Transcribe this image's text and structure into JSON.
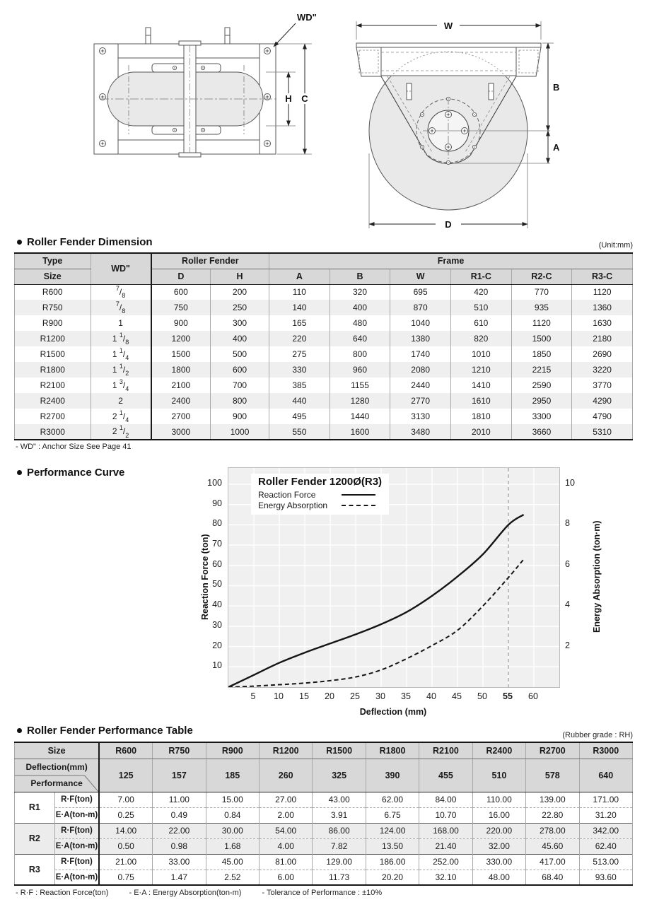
{
  "page": {
    "unit_note": "(Unit:mm)",
    "rubber_note": "(Rubber grade : RH)"
  },
  "drawings": {
    "side": {
      "wd": "WD\"",
      "h": "H",
      "c": "C"
    },
    "front": {
      "w": "W",
      "b": "B",
      "a": "A",
      "d": "D"
    }
  },
  "dimension_section": {
    "title": "Roller Fender Dimension",
    "footnote": "- WD\" : Anchor Size See Page 41",
    "table": {
      "header": {
        "type": "Type",
        "size": "Size",
        "wd": "WD\"",
        "roller_fender": "Roller Fender",
        "frame": "Frame",
        "cols": [
          "D",
          "H",
          "A",
          "B",
          "W",
          "R1-C",
          "R2-C",
          "R3-C"
        ]
      },
      "rows": [
        {
          "size": "R600",
          "wd": "7/8",
          "d": "600",
          "h": "200",
          "a": "110",
          "b": "320",
          "w": "695",
          "r1c": "420",
          "r2c": "770",
          "r3c": "1120"
        },
        {
          "size": "R750",
          "wd": "7/8",
          "d": "750",
          "h": "250",
          "a": "140",
          "b": "400",
          "w": "870",
          "r1c": "510",
          "r2c": "935",
          "r3c": "1360"
        },
        {
          "size": "R900",
          "wd": "1",
          "d": "900",
          "h": "300",
          "a": "165",
          "b": "480",
          "w": "1040",
          "r1c": "610",
          "r2c": "1120",
          "r3c": "1630"
        },
        {
          "size": "R1200",
          "wd": "1 1/8",
          "d": "1200",
          "h": "400",
          "a": "220",
          "b": "640",
          "w": "1380",
          "r1c": "820",
          "r2c": "1500",
          "r3c": "2180"
        },
        {
          "size": "R1500",
          "wd": "1 1/4",
          "d": "1500",
          "h": "500",
          "a": "275",
          "b": "800",
          "w": "1740",
          "r1c": "1010",
          "r2c": "1850",
          "r3c": "2690"
        },
        {
          "size": "R1800",
          "wd": "1 1/2",
          "d": "1800",
          "h": "600",
          "a": "330",
          "b": "960",
          "w": "2080",
          "r1c": "1210",
          "r2c": "2215",
          "r3c": "3220"
        },
        {
          "size": "R2100",
          "wd": "1 3/4",
          "d": "2100",
          "h": "700",
          "a": "385",
          "b": "1155",
          "w": "2440",
          "r1c": "1410",
          "r2c": "2590",
          "r3c": "3770"
        },
        {
          "size": "R2400",
          "wd": "2",
          "d": "2400",
          "h": "800",
          "a": "440",
          "b": "1280",
          "w": "2770",
          "r1c": "1610",
          "r2c": "2950",
          "r3c": "4290"
        },
        {
          "size": "R2700",
          "wd": "2 1/4",
          "d": "2700",
          "h": "900",
          "a": "495",
          "b": "1440",
          "w": "3130",
          "r1c": "1810",
          "r2c": "3300",
          "r3c": "4790"
        },
        {
          "size": "R3000",
          "wd": "2 1/2",
          "d": "3000",
          "h": "1000",
          "a": "550",
          "b": "1600",
          "w": "3480",
          "r1c": "2010",
          "r2c": "3660",
          "r3c": "5310"
        }
      ]
    }
  },
  "curve_section": {
    "title": "Performance Curve"
  },
  "chart_data": {
    "type": "line",
    "title": "Roller Fender 1200Ø(R3)",
    "x_axis": {
      "label": "Deflection (mm)",
      "ticks": [
        5,
        10,
        15,
        20,
        25,
        30,
        35,
        40,
        45,
        50,
        55,
        60
      ],
      "range": [
        0,
        65
      ],
      "bold_tick": 55,
      "marker_x": 55
    },
    "y_left": {
      "label": "Reaction Force (ton)",
      "ticks": [
        10,
        20,
        30,
        40,
        50,
        60,
        70,
        80,
        90,
        100
      ],
      "range": [
        0,
        108
      ]
    },
    "y_right": {
      "label": "Energy Absorption (ton·m)",
      "ticks": [
        2,
        4,
        6,
        8,
        10
      ],
      "range": [
        0,
        10.8
      ]
    },
    "grid": true,
    "legend_position": "top-left",
    "plot_bg": "#f0f0f0",
    "series": [
      {
        "name": "Reaction Force",
        "style": "solid",
        "axis": "left",
        "x": [
          0,
          5,
          10,
          15,
          20,
          25,
          30,
          35,
          40,
          45,
          50,
          55,
          58
        ],
        "y": [
          0,
          6,
          12,
          17,
          21.5,
          26,
          31,
          37,
          45,
          54.5,
          65.5,
          80,
          85
        ]
      },
      {
        "name": "Energy Absorption",
        "style": "dashed",
        "axis": "right",
        "x": [
          0,
          5,
          10,
          15,
          20,
          25,
          30,
          35,
          40,
          45,
          50,
          55,
          58
        ],
        "y": [
          0,
          0.05,
          0.12,
          0.2,
          0.32,
          0.5,
          0.85,
          1.4,
          2.05,
          2.8,
          4.0,
          5.4,
          6.3
        ]
      }
    ]
  },
  "performance_section": {
    "title": "Roller Fender Performance Table",
    "notes": [
      "- R·F : Reaction Force(ton)",
      "- E·A : Energy Absorption(ton-m)",
      "- Tolerance of Performance : ±10%"
    ],
    "table": {
      "size_label": "Size",
      "deflection_label": "Deflection(mm)",
      "performance_label": "Performance",
      "rf_label": "R·F(ton)",
      "ea_label": "E·A(ton-m)",
      "sizes": [
        "R600",
        "R750",
        "R900",
        "R1200",
        "R1500",
        "R1800",
        "R2100",
        "R2400",
        "R2700",
        "R3000"
      ],
      "deflections": [
        "125",
        "157",
        "185",
        "260",
        "325",
        "390",
        "455",
        "510",
        "578",
        "640"
      ],
      "groups": [
        {
          "name": "R1",
          "rf": [
            "7.00",
            "11.00",
            "15.00",
            "27.00",
            "43.00",
            "62.00",
            "84.00",
            "110.00",
            "139.00",
            "171.00"
          ],
          "ea": [
            "0.25",
            "0.49",
            "0.84",
            "2.00",
            "3.91",
            "6.75",
            "10.70",
            "16.00",
            "22.80",
            "31.20"
          ]
        },
        {
          "name": "R2",
          "rf": [
            "14.00",
            "22.00",
            "30.00",
            "54.00",
            "86.00",
            "124.00",
            "168.00",
            "220.00",
            "278.00",
            "342.00"
          ],
          "ea": [
            "0.50",
            "0.98",
            "1.68",
            "4.00",
            "7.82",
            "13.50",
            "21.40",
            "32.00",
            "45.60",
            "62.40"
          ]
        },
        {
          "name": "R3",
          "rf": [
            "21.00",
            "33.00",
            "45.00",
            "81.00",
            "129.00",
            "186.00",
            "252.00",
            "330.00",
            "417.00",
            "513.00"
          ],
          "ea": [
            "0.75",
            "1.47",
            "2.52",
            "6.00",
            "11.73",
            "20.20",
            "32.10",
            "48.00",
            "68.40",
            "93.60"
          ]
        }
      ]
    }
  }
}
